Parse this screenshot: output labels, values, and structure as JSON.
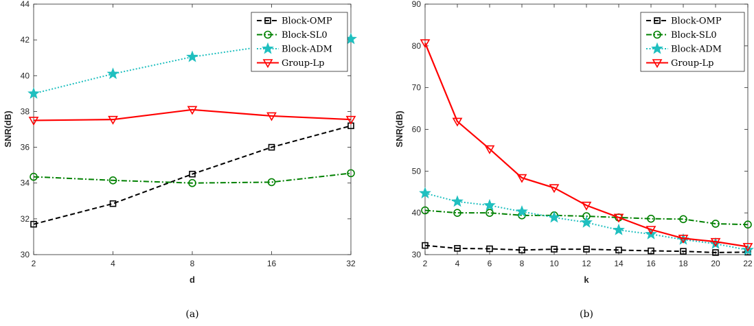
{
  "chart_data": [
    {
      "type": "line",
      "xscale": "categorical",
      "categories": [
        "2",
        "4",
        "8",
        "16",
        "32"
      ],
      "xlabel": "d",
      "ylabel": "SNR(dB)",
      "ylim": [
        30,
        44
      ],
      "yticks": [
        30,
        32,
        34,
        36,
        38,
        40,
        42,
        44
      ],
      "grid": false,
      "legend_position": "top-right",
      "caption": "(a)",
      "series": [
        {
          "name": "Block-OMP",
          "color": "#000000",
          "dash": "dashed",
          "marker": "square",
          "values": [
            31.7,
            32.85,
            34.5,
            36.0,
            37.2
          ]
        },
        {
          "name": "Block-SL0",
          "color": "#008000",
          "dash": "dashdot",
          "marker": "circle",
          "values": [
            34.35,
            34.15,
            34.0,
            34.05,
            34.55
          ]
        },
        {
          "name": "Block-ADM",
          "color": "#1fbfbf",
          "dash": "dotted",
          "marker": "star",
          "values": [
            39.0,
            40.1,
            41.05,
            41.7,
            42.05
          ]
        },
        {
          "name": "Group-Lp",
          "color": "#ff0000",
          "dash": "solid",
          "marker": "triangle-down",
          "values": [
            37.5,
            37.55,
            38.1,
            37.75,
            37.55
          ]
        }
      ]
    },
    {
      "type": "line",
      "xscale": "linear",
      "x": [
        2,
        4,
        6,
        8,
        10,
        12,
        14,
        16,
        18,
        20,
        22
      ],
      "xlim": [
        2,
        22
      ],
      "xticks": [
        2,
        4,
        6,
        8,
        10,
        12,
        14,
        16,
        18,
        20,
        22
      ],
      "xlabel": "k",
      "ylabel": "SNR(dB)",
      "ylim": [
        30,
        90
      ],
      "yticks": [
        30,
        40,
        50,
        60,
        70,
        80,
        90
      ],
      "grid": false,
      "legend_position": "top-right",
      "caption": "(b)",
      "series": [
        {
          "name": "Block-OMP",
          "color": "#000000",
          "dash": "dashed",
          "marker": "square",
          "values": [
            32.2,
            31.5,
            31.4,
            31.1,
            31.3,
            31.3,
            31.1,
            30.9,
            30.8,
            30.5,
            30.6
          ]
        },
        {
          "name": "Block-SL0",
          "color": "#008000",
          "dash": "dashdot",
          "marker": "circle",
          "values": [
            40.6,
            40.0,
            40.0,
            39.4,
            39.4,
            39.2,
            38.9,
            38.6,
            38.5,
            37.4,
            37.2
          ]
        },
        {
          "name": "Block-ADM",
          "color": "#1fbfbf",
          "dash": "dotted",
          "marker": "star",
          "values": [
            44.7,
            42.7,
            41.8,
            40.3,
            38.9,
            37.7,
            35.9,
            34.9,
            33.6,
            32.6,
            31.1
          ]
        },
        {
          "name": "Group-Lp",
          "color": "#ff0000",
          "dash": "solid",
          "marker": "triangle-down",
          "values": [
            80.7,
            61.9,
            55.3,
            48.4,
            46.0,
            41.8,
            38.9,
            36.0,
            33.9,
            33.1,
            31.9
          ]
        }
      ]
    }
  ]
}
